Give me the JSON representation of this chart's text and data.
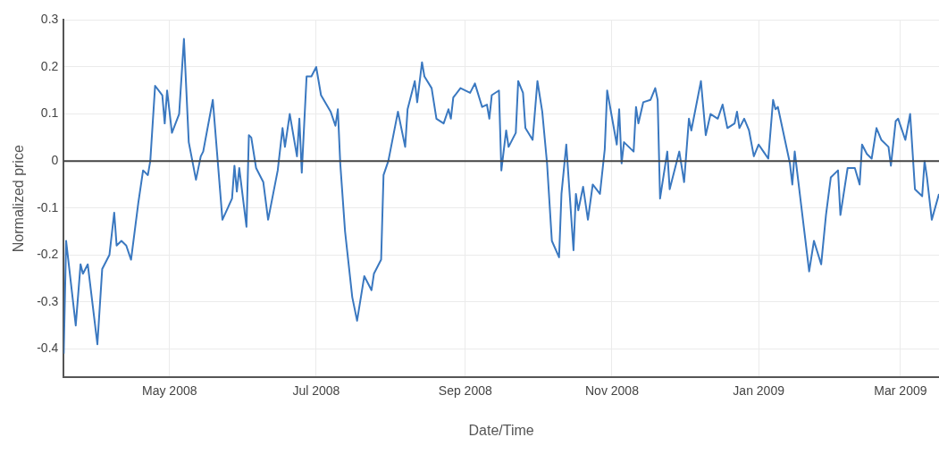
{
  "chart_data": {
    "type": "line",
    "xlabel": "Date/Time",
    "ylabel": "Normalized price",
    "grid": true,
    "marker": "none",
    "line_style": "solid",
    "legend": false,
    "xlim": [
      "2008-03-18",
      "2009-03-17"
    ],
    "xticks": [
      {
        "value": "2008-05-01",
        "label": "May 2008"
      },
      {
        "value": "2008-07-01",
        "label": "Jul 2008"
      },
      {
        "value": "2008-09-01",
        "label": "Sep 2008"
      },
      {
        "value": "2008-11-01",
        "label": "Nov 2008"
      },
      {
        "value": "2009-01-01",
        "label": "Jan 2009"
      },
      {
        "value": "2009-03-01",
        "label": "Mar 2009"
      }
    ],
    "ylim": [
      -0.46,
      0.3
    ],
    "yticks": [
      -0.4,
      -0.3,
      -0.2,
      -0.1,
      0,
      0.1,
      0.2,
      0.3
    ],
    "ref_lines": [
      {
        "axis": "y",
        "value": 0,
        "color": "#444444"
      }
    ],
    "series": [
      {
        "color": "#3a78c0",
        "x": [
          "2008-03-18",
          "2008-03-19",
          "2008-03-23",
          "2008-03-25",
          "2008-03-26",
          "2008-03-28",
          "2008-04-01",
          "2008-04-03",
          "2008-04-06",
          "2008-04-08",
          "2008-04-09",
          "2008-04-11",
          "2008-04-13",
          "2008-04-15",
          "2008-04-18",
          "2008-04-20",
          "2008-04-22",
          "2008-04-23",
          "2008-04-25",
          "2008-04-28",
          "2008-04-29",
          "2008-04-30",
          "2008-05-02",
          "2008-05-05",
          "2008-05-07",
          "2008-05-09",
          "2008-05-12",
          "2008-05-14",
          "2008-05-15",
          "2008-05-19",
          "2008-05-23",
          "2008-05-27",
          "2008-05-28",
          "2008-05-29",
          "2008-05-30",
          "2008-06-02",
          "2008-06-03",
          "2008-06-04",
          "2008-06-06",
          "2008-06-09",
          "2008-06-11",
          "2008-06-15",
          "2008-06-17",
          "2008-06-18",
          "2008-06-20",
          "2008-06-23",
          "2008-06-24",
          "2008-06-25",
          "2008-06-27",
          "2008-06-29",
          "2008-07-01",
          "2008-07-03",
          "2008-07-07",
          "2008-07-09",
          "2008-07-10",
          "2008-07-11",
          "2008-07-13",
          "2008-07-16",
          "2008-07-18",
          "2008-07-21",
          "2008-07-24",
          "2008-07-25",
          "2008-07-28",
          "2008-07-29",
          "2008-07-31",
          "2008-08-04",
          "2008-08-07",
          "2008-08-08",
          "2008-08-11",
          "2008-08-12",
          "2008-08-14",
          "2008-08-15",
          "2008-08-18",
          "2008-08-20",
          "2008-08-23",
          "2008-08-25",
          "2008-08-26",
          "2008-08-27",
          "2008-08-30",
          "2008-09-03",
          "2008-09-05",
          "2008-09-08",
          "2008-09-10",
          "2008-09-11",
          "2008-09-12",
          "2008-09-15",
          "2008-09-16",
          "2008-09-18",
          "2008-09-19",
          "2008-09-22",
          "2008-09-23",
          "2008-09-25",
          "2008-09-26",
          "2008-09-29",
          "2008-10-01",
          "2008-10-03",
          "2008-10-05",
          "2008-10-07",
          "2008-10-10",
          "2008-10-11",
          "2008-10-13",
          "2008-10-16",
          "2008-10-17",
          "2008-10-18",
          "2008-10-20",
          "2008-10-22",
          "2008-10-24",
          "2008-10-27",
          "2008-10-29",
          "2008-10-30",
          "2008-11-03",
          "2008-11-04",
          "2008-11-05",
          "2008-11-06",
          "2008-11-10",
          "2008-11-11",
          "2008-11-12",
          "2008-11-14",
          "2008-11-17",
          "2008-11-19",
          "2008-11-20",
          "2008-11-21",
          "2008-11-24",
          "2008-11-25",
          "2008-11-29",
          "2008-12-01",
          "2008-12-03",
          "2008-12-04",
          "2008-12-08",
          "2008-12-10",
          "2008-12-12",
          "2008-12-15",
          "2008-12-17",
          "2008-12-19",
          "2008-12-22",
          "2008-12-23",
          "2008-12-24",
          "2008-12-26",
          "2008-12-28",
          "2008-12-30",
          "2009-01-01",
          "2009-01-03",
          "2009-01-05",
          "2009-01-07",
          "2009-01-08",
          "2009-01-09",
          "2009-01-14",
          "2009-01-15",
          "2009-01-16",
          "2009-01-22",
          "2009-01-24",
          "2009-01-27",
          "2009-01-29",
          "2009-01-31",
          "2009-02-03",
          "2009-02-04",
          "2009-02-07",
          "2009-02-10",
          "2009-02-12",
          "2009-02-13",
          "2009-02-15",
          "2009-02-17",
          "2009-02-19",
          "2009-02-21",
          "2009-02-24",
          "2009-02-25",
          "2009-02-27",
          "2009-02-28",
          "2009-03-03",
          "2009-03-05",
          "2009-03-07",
          "2009-03-10",
          "2009-03-11",
          "2009-03-12",
          "2009-03-14",
          "2009-03-17"
        ],
        "values": [
          -0.41,
          -0.17,
          -0.35,
          -0.22,
          -0.24,
          -0.22,
          -0.39,
          -0.23,
          -0.2,
          -0.11,
          -0.18,
          -0.17,
          -0.18,
          -0.21,
          -0.09,
          -0.02,
          -0.03,
          0.0,
          0.16,
          0.14,
          0.08,
          0.15,
          0.06,
          0.1,
          0.26,
          0.04,
          -0.04,
          0.01,
          0.02,
          0.13,
          -0.125,
          -0.08,
          -0.01,
          -0.065,
          -0.015,
          -0.14,
          0.055,
          0.05,
          -0.015,
          -0.045,
          -0.125,
          -0.02,
          0.07,
          0.03,
          0.1,
          0.01,
          0.09,
          -0.025,
          0.18,
          0.18,
          0.2,
          0.14,
          0.105,
          0.075,
          0.11,
          -0.005,
          -0.15,
          -0.29,
          -0.34,
          -0.245,
          -0.275,
          -0.24,
          -0.21,
          -0.03,
          0.0,
          0.105,
          0.03,
          0.11,
          0.17,
          0.125,
          0.21,
          0.18,
          0.155,
          0.09,
          0.08,
          0.11,
          0.09,
          0.135,
          0.155,
          0.145,
          0.165,
          0.115,
          0.12,
          0.09,
          0.14,
          0.15,
          -0.02,
          0.065,
          0.03,
          0.06,
          0.17,
          0.145,
          0.07,
          0.045,
          0.17,
          0.105,
          -0.005,
          -0.17,
          -0.205,
          -0.07,
          0.035,
          -0.19,
          -0.07,
          -0.105,
          -0.055,
          -0.125,
          -0.05,
          -0.07,
          0.025,
          0.15,
          0.035,
          0.11,
          -0.005,
          0.04,
          0.02,
          0.115,
          0.08,
          0.125,
          0.13,
          0.155,
          0.13,
          -0.08,
          0.02,
          -0.06,
          0.02,
          -0.045,
          0.09,
          0.065,
          0.17,
          0.055,
          0.1,
          0.09,
          0.12,
          0.07,
          0.08,
          0.105,
          0.07,
          0.09,
          0.065,
          0.01,
          0.035,
          0.02,
          0.005,
          0.13,
          0.11,
          0.115,
          -0.005,
          -0.05,
          0.02,
          -0.235,
          -0.17,
          -0.22,
          -0.115,
          -0.035,
          -0.02,
          -0.115,
          -0.015,
          -0.015,
          -0.05,
          0.035,
          0.015,
          0.005,
          0.07,
          0.045,
          0.03,
          -0.01,
          0.085,
          0.09,
          0.045,
          0.1,
          -0.06,
          -0.075,
          0.0,
          -0.035,
          -0.125,
          -0.07
        ]
      }
    ]
  }
}
